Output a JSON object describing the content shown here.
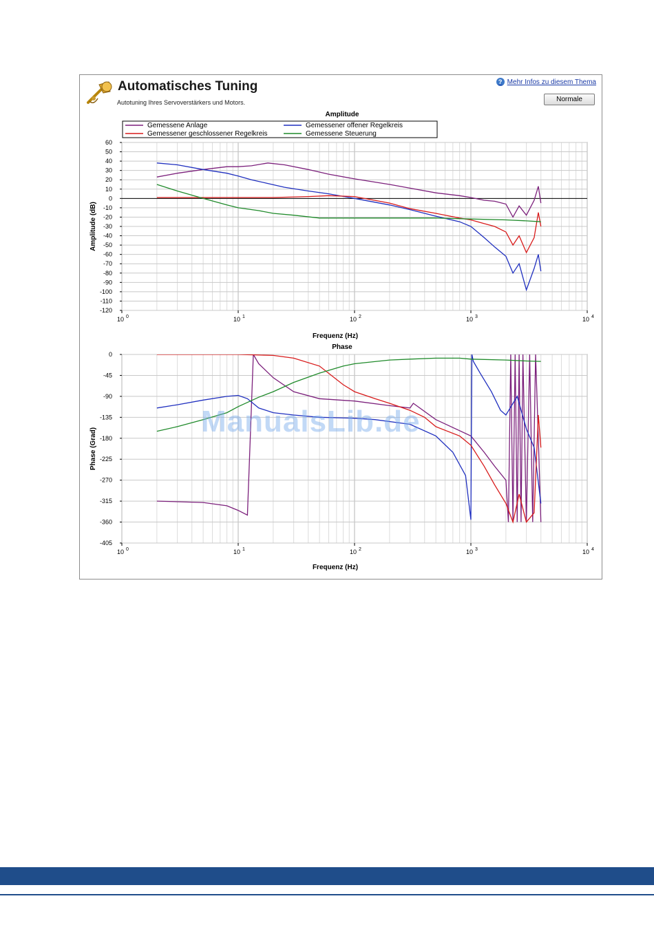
{
  "window": {
    "title": "Automatisches Tuning",
    "subtitle": "Autotuning Ihres Servoverstärkers und Motors.",
    "help_link": "Mehr Infos zu diesem Thema",
    "normal_button": "Normale",
    "icon": "trumpet-icon"
  },
  "watermark": "ManualsLib.de",
  "colors": {
    "plant": "#7b1f7b",
    "open_loop": "#1f2fbf",
    "closed_loop": "#d81a1a",
    "feedforward": "#1f8a2a",
    "footer": "#1f4d8a"
  },
  "chart_data": [
    {
      "type": "line",
      "title": "Amplitude",
      "xlabel": "Frequenz (Hz)",
      "ylabel": "Amplitude (dB)",
      "x_scale": "log",
      "xlim": [
        1,
        10000
      ],
      "ylim": [
        -120,
        60
      ],
      "yticks": [
        60,
        50,
        40,
        30,
        20,
        10,
        0,
        -10,
        -20,
        -30,
        -40,
        -50,
        -60,
        -70,
        -80,
        -90,
        -100,
        -110,
        -120
      ],
      "xticks": [
        {
          "base": "10",
          "exp": "0"
        },
        {
          "base": "10",
          "exp": "1"
        },
        {
          "base": "10",
          "exp": "2"
        },
        {
          "base": "10",
          "exp": "3"
        },
        {
          "base": "10",
          "exp": "4"
        }
      ],
      "grid": true,
      "legend": [
        "Gemessene Anlage",
        "Gemessener offener Regelkreis",
        "Gemessener geschlossener Regelkreis",
        "Gemessene Steuerung"
      ],
      "series": [
        {
          "name": "Gemessene Anlage",
          "color": "#7b1f7b",
          "x": [
            2,
            3,
            5,
            8,
            10,
            13,
            18,
            25,
            40,
            60,
            100,
            200,
            300,
            500,
            800,
            1000,
            1300,
            1600,
            2000,
            2300,
            2600,
            3000,
            3500,
            3800,
            4000
          ],
          "y": [
            23,
            27,
            31,
            34,
            34,
            35,
            38,
            36,
            31,
            26,
            21,
            15,
            11,
            6,
            3,
            1,
            -2,
            -3,
            -6,
            -20,
            -8,
            -18,
            -2,
            13,
            -5
          ]
        },
        {
          "name": "Gemessener offener Regelkreis",
          "color": "#1f2fbf",
          "x": [
            2,
            3,
            5,
            8,
            10,
            13,
            18,
            25,
            40,
            60,
            100,
            200,
            300,
            500,
            800,
            1000,
            1300,
            1600,
            2000,
            2300,
            2600,
            3000,
            3500,
            3800,
            4000
          ],
          "y": [
            38,
            36,
            31,
            27,
            24,
            20,
            16,
            12,
            8,
            5,
            0,
            -7,
            -12,
            -19,
            -25,
            -30,
            -42,
            -52,
            -62,
            -80,
            -70,
            -98,
            -75,
            -60,
            -78
          ]
        },
        {
          "name": "Gemessener geschlossener Regelkreis",
          "color": "#d81a1a",
          "x": [
            2,
            5,
            10,
            20,
            40,
            60,
            100,
            200,
            300,
            500,
            800,
            1000,
            1300,
            1600,
            2000,
            2300,
            2600,
            3000,
            3500,
            3800,
            4000
          ],
          "y": [
            1,
            1,
            1,
            1,
            2,
            3,
            2,
            -5,
            -11,
            -16,
            -21,
            -23,
            -27,
            -30,
            -36,
            -50,
            -40,
            -58,
            -42,
            -15,
            -30
          ]
        },
        {
          "name": "Gemessene Steuerung",
          "color": "#1f8a2a",
          "x": [
            2,
            3,
            5,
            8,
            10,
            15,
            20,
            30,
            50,
            100,
            200,
            500,
            1000,
            2000,
            3000,
            4000
          ],
          "y": [
            15,
            8,
            0,
            -7,
            -10,
            -13,
            -16,
            -18,
            -21,
            -21,
            -21,
            -21,
            -22,
            -23,
            -24,
            -25
          ]
        }
      ]
    },
    {
      "type": "line",
      "title": "Phase",
      "xlabel": "Frequenz (Hz)",
      "ylabel": "Phase (Grad)",
      "x_scale": "log",
      "xlim": [
        1,
        10000
      ],
      "ylim": [
        -405,
        0
      ],
      "yticks": [
        0,
        -45,
        -90,
        -135,
        -180,
        -225,
        -270,
        -315,
        -360,
        -405
      ],
      "xticks": [
        {
          "base": "10",
          "exp": "0"
        },
        {
          "base": "10",
          "exp": "1"
        },
        {
          "base": "10",
          "exp": "2"
        },
        {
          "base": "10",
          "exp": "3"
        },
        {
          "base": "10",
          "exp": "4"
        }
      ],
      "grid": true,
      "series": [
        {
          "name": "Gemessene Anlage",
          "color": "#7b1f7b",
          "x": [
            2,
            5,
            8,
            10,
            12,
            13.5,
            15,
            20,
            30,
            50,
            100,
            200,
            300,
            320,
            500,
            1000,
            1300,
            1600,
            2000,
            2100,
            2200,
            2300,
            2400,
            2500,
            2600,
            2700,
            2800,
            3000,
            3200,
            3400,
            3600,
            3800,
            4000
          ],
          "y": [
            -315,
            -318,
            -325,
            -335,
            -345,
            0,
            -20,
            -50,
            -80,
            -95,
            -100,
            -110,
            -115,
            -105,
            -140,
            -175,
            -210,
            -240,
            -270,
            -360,
            0,
            -360,
            0,
            -360,
            0,
            -360,
            0,
            -360,
            0,
            -360,
            0,
            -180,
            -360
          ]
        },
        {
          "name": "Gemessener offener Regelkreis",
          "color": "#1f2fbf",
          "x": [
            2,
            3,
            5,
            8,
            10,
            12,
            15,
            20,
            30,
            50,
            100,
            150,
            300,
            500,
            700,
            900,
            1000,
            1020,
            1050,
            1200,
            1500,
            1800,
            2000,
            2500,
            3000,
            3500,
            4000
          ],
          "y": [
            -115,
            -108,
            -98,
            -90,
            -88,
            -95,
            -115,
            -125,
            -130,
            -135,
            -137,
            -140,
            -150,
            -175,
            -210,
            -260,
            -355,
            0,
            -15,
            -40,
            -80,
            -120,
            -130,
            -90,
            -160,
            -200,
            -320
          ]
        },
        {
          "name": "Gemessener geschlossener Regelkreis",
          "color": "#d81a1a",
          "x": [
            2,
            10,
            20,
            30,
            50,
            80,
            100,
            150,
            200,
            300,
            400,
            500,
            800,
            1000,
            1300,
            1600,
            2000,
            2300,
            2600,
            3000,
            3500,
            3800,
            4000
          ],
          "y": [
            0,
            0,
            -2,
            -8,
            -25,
            -65,
            -80,
            -95,
            -105,
            -120,
            -135,
            -155,
            -175,
            -195,
            -240,
            -280,
            -320,
            -360,
            -300,
            -360,
            -340,
            -130,
            -200
          ]
        },
        {
          "name": "Gemessene Steuerung",
          "color": "#1f8a2a",
          "x": [
            2,
            3,
            5,
            8,
            10,
            15,
            20,
            30,
            50,
            80,
            100,
            200,
            300,
            500,
            800,
            1000,
            2000,
            3000,
            4000
          ],
          "y": [
            -165,
            -155,
            -140,
            -125,
            -112,
            -92,
            -80,
            -60,
            -40,
            -25,
            -20,
            -12,
            -10,
            -8,
            -8,
            -10,
            -12,
            -14,
            -15
          ]
        }
      ]
    }
  ]
}
